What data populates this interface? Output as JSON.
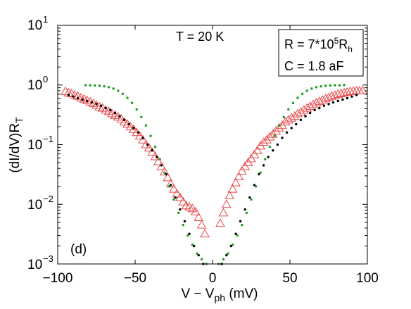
{
  "chart_data": {
    "type": "scatter",
    "panel_label": "(d)",
    "title": "",
    "xlabel": {
      "main": "V − V",
      "sub": "ph",
      "tail": " (mV)"
    },
    "ylabel": {
      "main": "(dI/dV)R",
      "sub": "T"
    },
    "xlim": [
      -100,
      100
    ],
    "ylim_log10": [
      -3,
      1
    ],
    "yscale": "log",
    "xticks": [
      -100,
      -50,
      0,
      50,
      100
    ],
    "xtick_labels": [
      "−100",
      "−50",
      "0",
      "50",
      "100"
    ],
    "yticks": [
      {
        "value": 10,
        "base": "10",
        "exp": "1"
      },
      {
        "value": 1,
        "base": "10",
        "exp": "0"
      },
      {
        "value": 0.1,
        "base": "10",
        "exp": "−1"
      },
      {
        "value": 0.01,
        "base": "10",
        "exp": "−2"
      },
      {
        "value": 0.001,
        "base": "10",
        "exp": "−3"
      }
    ],
    "annotation_temp": "T = 20 K",
    "legend_box": {
      "line1": {
        "pre": "R = 7*10",
        "sup": "5",
        "tail": "R",
        "sub": "h"
      },
      "line2": "C = 1.8 aF"
    },
    "series": [
      {
        "marker": "triangle-open",
        "color": "#e8474a",
        "points": [
          [
            -95,
            0.78
          ],
          [
            -93,
            0.74
          ],
          [
            -91,
            0.72
          ],
          [
            -89,
            0.68
          ],
          [
            -87,
            0.65
          ],
          [
            -85,
            0.61
          ],
          [
            -83,
            0.58
          ],
          [
            -81,
            0.55
          ],
          [
            -79,
            0.52
          ],
          [
            -77,
            0.49
          ],
          [
            -75,
            0.46
          ],
          [
            -73,
            0.43
          ],
          [
            -71,
            0.41
          ],
          [
            -69,
            0.38
          ],
          [
            -67,
            0.36
          ],
          [
            -65,
            0.33
          ],
          [
            -63,
            0.31
          ],
          [
            -61,
            0.29
          ],
          [
            -59,
            0.27
          ],
          [
            -57,
            0.24
          ],
          [
            -55,
            0.22
          ],
          [
            -53,
            0.2
          ],
          [
            -51,
            0.18
          ],
          [
            -49,
            0.16
          ],
          [
            -47,
            0.14
          ],
          [
            -45,
            0.12
          ],
          [
            -43,
            0.1
          ],
          [
            -41,
            0.088
          ],
          [
            -39,
            0.075
          ],
          [
            -37,
            0.063
          ],
          [
            -35,
            0.052
          ],
          [
            -33,
            0.043
          ],
          [
            -31,
            0.035
          ],
          [
            -29,
            0.028
          ],
          [
            -27,
            0.022
          ],
          [
            -25,
            0.018
          ],
          [
            -23,
            0.015
          ],
          [
            -21,
            0.013
          ],
          [
            -19,
            0.011
          ],
          [
            -17,
            0.0095
          ],
          [
            -15,
            0.009
          ],
          [
            -13,
            0.0085
          ],
          [
            -11,
            0.0075
          ],
          [
            -9,
            0.006
          ],
          [
            -7,
            0.0045
          ],
          [
            -5,
            0.0032
          ],
          [
            5,
            0.0048
          ],
          [
            7,
            0.0072
          ],
          [
            9,
            0.01
          ],
          [
            11,
            0.014
          ],
          [
            13,
            0.018
          ],
          [
            15,
            0.023
          ],
          [
            17,
            0.029
          ],
          [
            19,
            0.036
          ],
          [
            21,
            0.043
          ],
          [
            23,
            0.05
          ],
          [
            25,
            0.058
          ],
          [
            27,
            0.068
          ],
          [
            29,
            0.08
          ],
          [
            31,
            0.095
          ],
          [
            33,
            0.11
          ],
          [
            35,
            0.12
          ],
          [
            37,
            0.135
          ],
          [
            39,
            0.15
          ],
          [
            41,
            0.17
          ],
          [
            43,
            0.19
          ],
          [
            45,
            0.21
          ],
          [
            47,
            0.24
          ],
          [
            49,
            0.26
          ],
          [
            51,
            0.28
          ],
          [
            53,
            0.3
          ],
          [
            55,
            0.33
          ],
          [
            57,
            0.35
          ],
          [
            59,
            0.38
          ],
          [
            61,
            0.41
          ],
          [
            63,
            0.44
          ],
          [
            65,
            0.47
          ],
          [
            67,
            0.5
          ],
          [
            69,
            0.53
          ],
          [
            71,
            0.56
          ],
          [
            73,
            0.59
          ],
          [
            75,
            0.62
          ],
          [
            77,
            0.65
          ],
          [
            79,
            0.67
          ],
          [
            81,
            0.7
          ],
          [
            83,
            0.72
          ],
          [
            85,
            0.74
          ],
          [
            87,
            0.76
          ],
          [
            89,
            0.78
          ],
          [
            91,
            0.79
          ],
          [
            93,
            0.8
          ],
          [
            95,
            0.8
          ],
          [
            97,
            0.8
          ]
        ]
      },
      {
        "marker": "dot",
        "color": "#000000",
        "points": [
          [
            -93,
            0.68
          ],
          [
            -90,
            0.64
          ],
          [
            -87,
            0.6
          ],
          [
            -84,
            0.57
          ],
          [
            -81,
            0.54
          ],
          [
            -78,
            0.51
          ],
          [
            -75,
            0.48
          ],
          [
            -72,
            0.45
          ],
          [
            -69,
            0.41
          ],
          [
            -66,
            0.38
          ],
          [
            -63,
            0.34
          ],
          [
            -60,
            0.3
          ],
          [
            -57,
            0.26
          ],
          [
            -54,
            0.22
          ],
          [
            -51,
            0.19
          ],
          [
            -48,
            0.16
          ],
          [
            -45,
            0.13
          ],
          [
            -42,
            0.1
          ],
          [
            -39,
            0.08
          ],
          [
            -36,
            0.062
          ],
          [
            -33,
            0.045
          ],
          [
            -30,
            0.032
          ],
          [
            -27,
            0.021
          ],
          [
            -24,
            0.013
          ],
          [
            -21,
            0.0082
          ],
          [
            -18,
            0.0052
          ],
          [
            -15,
            0.0032
          ],
          [
            -12,
            0.002
          ],
          [
            -9,
            0.0014
          ],
          [
            -6,
            0.001
          ],
          [
            6,
            0.001
          ],
          [
            9,
            0.0014
          ],
          [
            12,
            0.002
          ],
          [
            15,
            0.0032
          ],
          [
            18,
            0.0052
          ],
          [
            21,
            0.0082
          ],
          [
            24,
            0.013
          ],
          [
            27,
            0.021
          ],
          [
            30,
            0.032
          ],
          [
            33,
            0.045
          ],
          [
            36,
            0.062
          ],
          [
            39,
            0.08
          ],
          [
            42,
            0.1
          ],
          [
            45,
            0.13
          ],
          [
            48,
            0.16
          ],
          [
            51,
            0.19
          ],
          [
            54,
            0.22
          ],
          [
            57,
            0.26
          ],
          [
            60,
            0.3
          ],
          [
            63,
            0.34
          ],
          [
            66,
            0.38
          ],
          [
            69,
            0.41
          ],
          [
            72,
            0.45
          ],
          [
            75,
            0.48
          ],
          [
            78,
            0.51
          ],
          [
            81,
            0.54
          ],
          [
            84,
            0.57
          ],
          [
            87,
            0.6
          ],
          [
            90,
            0.64
          ],
          [
            93,
            0.68
          ]
        ]
      },
      {
        "marker": "dot",
        "color": "#1f9a1f",
        "points": [
          [
            -82,
            0.99
          ],
          [
            -79,
            0.99
          ],
          [
            -76,
            0.98
          ],
          [
            -73,
            0.97
          ],
          [
            -70,
            0.95
          ],
          [
            -67,
            0.92
          ],
          [
            -64,
            0.87
          ],
          [
            -61,
            0.8
          ],
          [
            -58,
            0.71
          ],
          [
            -55,
            0.61
          ],
          [
            -52,
            0.5
          ],
          [
            -49,
            0.39
          ],
          [
            -46,
            0.29
          ],
          [
            -43,
            0.21
          ],
          [
            -40,
            0.14
          ],
          [
            -37,
            0.092
          ],
          [
            -34,
            0.057
          ],
          [
            -31,
            0.034
          ],
          [
            -28,
            0.02
          ],
          [
            -25,
            0.012
          ],
          [
            -22,
            0.0072
          ],
          [
            -19,
            0.0045
          ],
          [
            -16,
            0.003
          ],
          [
            -13,
            0.0021
          ],
          [
            -10,
            0.0015
          ],
          [
            -7,
            0.0012
          ],
          [
            -4,
            0.001
          ],
          [
            4,
            0.001
          ],
          [
            7,
            0.0012
          ],
          [
            10,
            0.0015
          ],
          [
            13,
            0.0021
          ],
          [
            16,
            0.003
          ],
          [
            19,
            0.0045
          ],
          [
            22,
            0.0072
          ],
          [
            25,
            0.012
          ],
          [
            28,
            0.02
          ],
          [
            31,
            0.034
          ],
          [
            34,
            0.057
          ],
          [
            37,
            0.092
          ],
          [
            40,
            0.14
          ],
          [
            43,
            0.21
          ],
          [
            46,
            0.29
          ],
          [
            49,
            0.39
          ],
          [
            52,
            0.5
          ],
          [
            55,
            0.61
          ],
          [
            58,
            0.71
          ],
          [
            61,
            0.8
          ],
          [
            64,
            0.87
          ],
          [
            67,
            0.92
          ],
          [
            70,
            0.95
          ],
          [
            73,
            0.97
          ],
          [
            76,
            0.98
          ],
          [
            79,
            0.99
          ],
          [
            82,
            0.99
          ],
          [
            85,
            1.0
          ]
        ]
      }
    ]
  }
}
